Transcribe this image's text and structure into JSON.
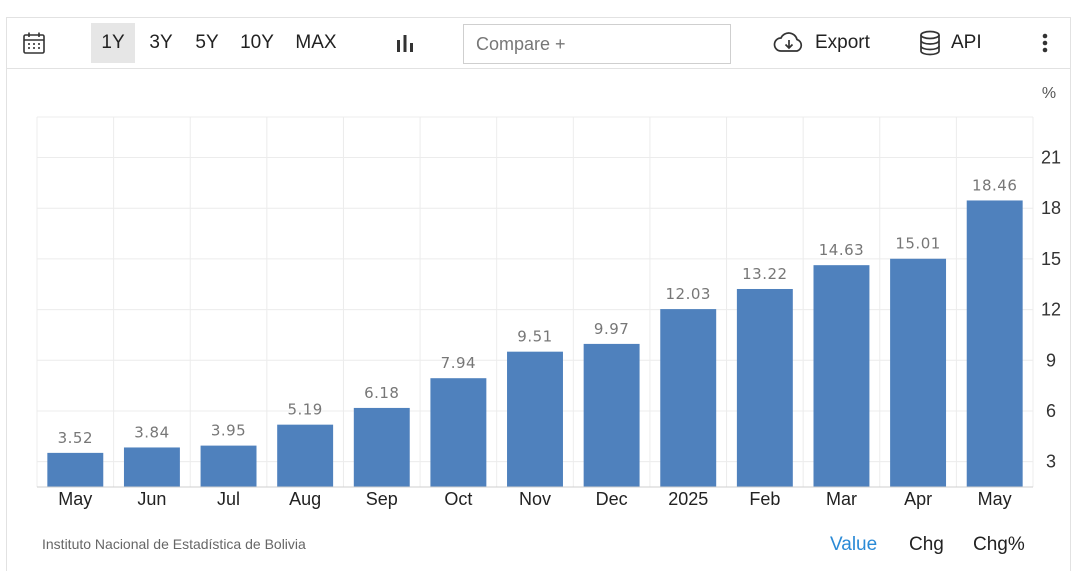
{
  "toolbar": {
    "calendar_icon": "calendar-icon",
    "ranges": [
      "1Y",
      "3Y",
      "5Y",
      "10Y",
      "MAX"
    ],
    "active_range": "1Y",
    "chart_type_icon": "bar-chart-icon",
    "compare_placeholder": "Compare +",
    "export_label": "Export",
    "api_label": "API",
    "more_icon": "more-vertical-icon"
  },
  "footer": {
    "source": "Instituto Nacional de Estadística de Bolivia",
    "modes": [
      "Value",
      "Chg",
      "Chg%"
    ],
    "active_mode": "Value"
  },
  "colors": {
    "bar": "#4f81bd",
    "active_mode": "#2a8ad6",
    "grid": "#ececec"
  },
  "chart_data": {
    "type": "bar",
    "categories": [
      "May",
      "Jun",
      "Jul",
      "Aug",
      "Sep",
      "Oct",
      "Nov",
      "Dec",
      "2025",
      "Feb",
      "Mar",
      "Apr",
      "May"
    ],
    "values": [
      3.52,
      3.84,
      3.95,
      5.19,
      6.18,
      7.94,
      9.51,
      9.97,
      12.03,
      13.22,
      14.63,
      15.01,
      18.46
    ],
    "unit": "%",
    "yticks": [
      3,
      6,
      9,
      12,
      15,
      18,
      21
    ],
    "ylim": [
      1.5,
      23.4
    ],
    "grid": true,
    "y_axis_position": "right"
  }
}
